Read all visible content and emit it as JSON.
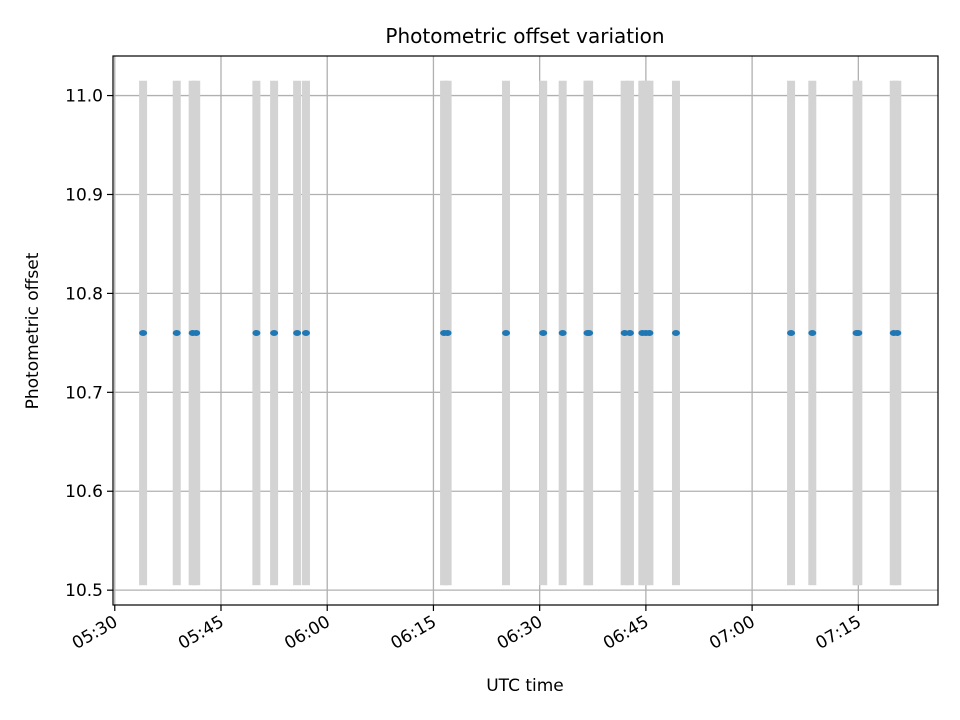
{
  "chart_data": {
    "type": "scatter",
    "title": "Photometric offset variation",
    "xlabel": "UTC time",
    "ylabel": "Photometric offset",
    "x_tick_labels": [
      "05:30",
      "05:45",
      "06:00",
      "06:15",
      "06:30",
      "06:45",
      "07:00",
      "07:15"
    ],
    "y_tick_labels": [
      "10.5",
      "10.6",
      "10.7",
      "10.8",
      "10.9",
      "11.0"
    ],
    "xlim": [
      "05:30",
      "07:26"
    ],
    "ylim": [
      10.485,
      11.04
    ],
    "grid": true,
    "span_range": [
      10.505,
      11.015
    ],
    "span_color": "#d3d3d3",
    "point_color": "#1f77b4",
    "series": [
      {
        "x": [
          "05:34",
          "05:38:45",
          "05:41",
          "05:41:30",
          "05:50",
          "05:52:30",
          "05:55:45",
          "05:57",
          "06:16:30",
          "06:17",
          "06:25:15",
          "06:30:30",
          "06:33:15",
          "06:36:45",
          "06:36:59",
          "06:42",
          "06:42:45",
          "06:44:30",
          "06:45",
          "06:45:30",
          "06:49:15",
          "07:05:30",
          "07:08:30",
          "07:14:45",
          "07:15",
          "07:20",
          "07:20:30"
        ],
        "y": [
          10.76,
          10.76,
          10.76,
          10.76,
          10.76,
          10.76,
          10.76,
          10.76,
          10.76,
          10.76,
          10.76,
          10.76,
          10.76,
          10.76,
          10.76,
          10.76,
          10.76,
          10.76,
          10.76,
          10.76,
          10.76,
          10.76,
          10.76,
          10.76,
          10.76,
          10.76,
          10.76
        ]
      }
    ]
  }
}
